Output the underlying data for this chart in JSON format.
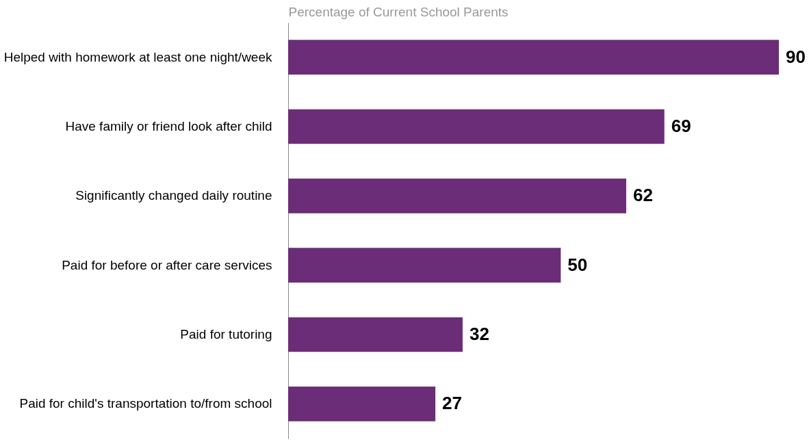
{
  "chart_data": {
    "type": "bar",
    "orientation": "horizontal",
    "xlabel": "Percentage of Current School Parents",
    "categories": [
      "Helped with homework at least one night/week",
      "Have family or friend look after child",
      "Significantly changed daily routine",
      "Paid for before or after care services",
      "Paid for tutoring",
      "Paid for child's transportation to/from school"
    ],
    "values": [
      90,
      69,
      62,
      50,
      32,
      27
    ],
    "color": "#6b2d77",
    "data_labels": true
  }
}
